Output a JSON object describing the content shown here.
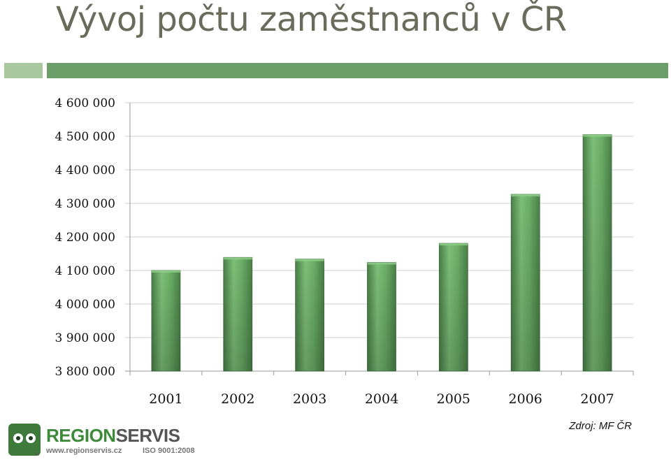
{
  "page": {
    "title": "Vývoj počtu zaměstnanců v ČR",
    "source": "Zdroj: MF ČR"
  },
  "logo": {
    "brand_part1": "REGION",
    "brand_part2": "SERVIS",
    "website": "www.regionservis.cz",
    "certification": "ISO 9001:2008",
    "mark": "owl-logo-icon",
    "colors": {
      "green": "#3d8a3b",
      "gray": "#555555"
    }
  },
  "chart_data": {
    "type": "bar",
    "categories": [
      "2001",
      "2002",
      "2003",
      "2004",
      "2005",
      "2006",
      "2007"
    ],
    "values": [
      4100000,
      4139000,
      4134000,
      4124000,
      4181000,
      4327000,
      4505000
    ],
    "ylim": [
      3800000,
      4600000
    ],
    "yticks": [
      3800000,
      3900000,
      4000000,
      4100000,
      4200000,
      4300000,
      4400000,
      4500000,
      4600000
    ],
    "ytick_labels": [
      "3 800 000",
      "3 900 000",
      "4 000 000",
      "4 100 000",
      "4 200 000",
      "4 300 000",
      "4 400 000",
      "4 500 000",
      "4 600 000"
    ],
    "grid": true,
    "legend": "none",
    "colors": {
      "bar": "#5f9e5c",
      "bar_light": "#7dbf78",
      "bar_dark": "#4a7f48"
    }
  }
}
